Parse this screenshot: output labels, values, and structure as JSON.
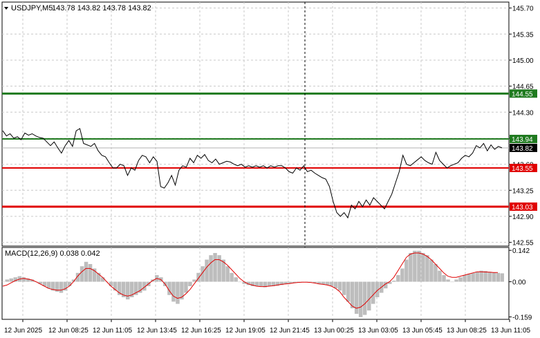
{
  "header": {
    "symbol": "USDJPY,M5",
    "ohlc": "143.78 143.82 143.78 143.82",
    "macd_label": "MACD(12,26,9) 0.038 0.042"
  },
  "colors": {
    "grid": "#c8c8c8",
    "price_line": "#000000",
    "resistance": "#1f7a1f",
    "support": "#e00000",
    "macd_hist": "#bdbdbd",
    "macd_signal": "#e00000",
    "current_box": "#000000"
  },
  "chart_data": [
    {
      "type": "line",
      "title": "USDJPY,M5",
      "y_ticks": [
        142.55,
        142.9,
        143.25,
        143.6,
        143.95,
        144.3,
        144.65,
        145.0,
        145.35,
        145.7
      ],
      "ylim": [
        142.5,
        145.78
      ],
      "x_tick_labels": [
        "12 Jun 2025",
        "12 Jun 08:25",
        "12 Jun 11:05",
        "12 Jun 13:45",
        "12 Jun 16:25",
        "12 Jun 19:05",
        "12 Jun 21:45",
        "13 Jun 00:25",
        "13 Jun 03:05",
        "13 Jun 05:45",
        "13 Jun 08:25",
        "13 Jun 11:05"
      ],
      "levels": [
        {
          "value": 144.55,
          "label": "144.55",
          "kind": "resistance"
        },
        {
          "value": 143.94,
          "label": "143.94",
          "kind": "resistance"
        },
        {
          "value": 143.55,
          "label": "143.55",
          "kind": "support"
        },
        {
          "value": 143.03,
          "label": "143.03",
          "kind": "support"
        }
      ],
      "current_price": {
        "value": 143.82,
        "label": "143.82"
      },
      "series": [
        {
          "values": [
            144.05,
            143.98,
            144.01,
            143.95,
            143.97,
            143.93,
            144.02,
            143.99,
            144.01,
            143.98,
            143.96,
            143.95,
            143.9,
            143.85,
            143.9,
            143.82,
            143.75,
            143.85,
            143.92,
            143.84,
            144.05,
            144.08,
            143.88,
            143.86,
            143.84,
            143.88,
            143.78,
            143.72,
            143.7,
            143.62,
            143.55,
            143.55,
            143.6,
            143.58,
            143.45,
            143.55,
            143.52,
            143.65,
            143.72,
            143.7,
            143.62,
            143.7,
            143.64,
            143.3,
            143.28,
            143.35,
            143.45,
            143.32,
            143.52,
            143.58,
            143.56,
            143.68,
            143.62,
            143.72,
            143.68,
            143.73,
            143.65,
            143.62,
            143.67,
            143.6,
            143.62,
            143.64,
            143.63,
            143.6,
            143.58,
            143.6,
            143.56,
            143.58,
            143.56,
            143.58,
            143.56,
            143.58,
            143.55,
            143.58,
            143.56,
            143.58,
            143.58,
            143.55,
            143.5,
            143.48,
            143.55,
            143.52,
            143.58,
            143.5,
            143.52,
            143.48,
            143.45,
            143.42,
            143.4,
            143.3,
            143.1,
            142.95,
            142.9,
            142.95,
            142.88,
            143.05,
            143.0,
            143.1,
            143.03,
            143.12,
            143.05,
            143.15,
            143.1,
            143.05,
            143.0,
            143.1,
            143.2,
            143.35,
            143.5,
            143.72,
            143.6,
            143.58,
            143.62,
            143.66,
            143.7,
            143.65,
            143.62,
            143.6,
            143.76,
            143.65,
            143.6,
            143.55,
            143.58,
            143.6,
            143.62,
            143.68,
            143.72,
            143.7,
            143.75,
            143.85,
            143.82,
            143.88,
            143.78,
            143.86,
            143.8,
            143.84,
            143.82
          ]
        }
      ]
    },
    {
      "type": "bar",
      "title": "MACD(12,26,9)",
      "y_ticks": [
        0.142,
        0.0,
        -0.159
      ],
      "ylim": [
        -0.17,
        0.155
      ],
      "series": [
        {
          "name": "MACD",
          "values": [
            0.0,
            0.01,
            0.015,
            0.02,
            0.025,
            0.02,
            0.015,
            0.01,
            0.0,
            -0.01,
            -0.02,
            -0.03,
            -0.04,
            -0.045,
            -0.05,
            -0.04,
            -0.02,
            0.01,
            0.04,
            0.07,
            0.09,
            0.08,
            0.06,
            0.04,
            0.02,
            0.0,
            -0.02,
            -0.04,
            -0.06,
            -0.07,
            -0.08,
            -0.07,
            -0.06,
            -0.05,
            -0.04,
            -0.02,
            0.01,
            0.03,
            0.02,
            -0.02,
            -0.06,
            -0.09,
            -0.1,
            -0.08,
            -0.05,
            -0.02,
            0.01,
            0.04,
            0.07,
            0.1,
            0.12,
            0.13,
            0.12,
            0.1,
            0.07,
            0.04,
            0.02,
            0.0,
            -0.01,
            -0.015,
            -0.02,
            -0.02,
            -0.02,
            -0.025,
            -0.02,
            -0.02,
            -0.018,
            -0.015,
            -0.01,
            -0.008,
            -0.005,
            -0.003,
            0.0,
            0.0,
            0.0,
            -0.005,
            -0.01,
            -0.012,
            -0.015,
            -0.02,
            -0.03,
            -0.04,
            -0.06,
            -0.09,
            -0.12,
            -0.145,
            -0.16,
            -0.15,
            -0.13,
            -0.1,
            -0.07,
            -0.05,
            -0.03,
            -0.01,
            0.005,
            0.03,
            0.06,
            0.1,
            0.13,
            0.14,
            0.14,
            0.13,
            0.12,
            0.1,
            0.08,
            0.05,
            0.03,
            0.01,
            0.0,
            0.01,
            0.02,
            0.03,
            0.035,
            0.04,
            0.045,
            0.05,
            0.048,
            0.045,
            0.042,
            0.04,
            0.038
          ]
        },
        {
          "name": "Signal",
          "values": [
            -0.02,
            -0.015,
            -0.005,
            0.005,
            0.012,
            0.015,
            0.012,
            0.008,
            0.0,
            -0.01,
            -0.02,
            -0.03,
            -0.035,
            -0.038,
            -0.038,
            -0.032,
            -0.02,
            0.0,
            0.025,
            0.045,
            0.06,
            0.06,
            0.05,
            0.035,
            0.02,
            0.0,
            -0.02,
            -0.035,
            -0.05,
            -0.06,
            -0.065,
            -0.06,
            -0.05,
            -0.04,
            -0.025,
            -0.01,
            0.005,
            0.015,
            0.01,
            -0.01,
            -0.04,
            -0.065,
            -0.075,
            -0.07,
            -0.055,
            -0.035,
            -0.01,
            0.015,
            0.04,
            0.065,
            0.085,
            0.1,
            0.1,
            0.09,
            0.075,
            0.055,
            0.035,
            0.015,
            0.0,
            -0.01,
            -0.015,
            -0.02,
            -0.022,
            -0.022,
            -0.02,
            -0.018,
            -0.015,
            -0.012,
            -0.01,
            -0.008,
            -0.005,
            -0.003,
            -0.002,
            -0.002,
            -0.003,
            -0.006,
            -0.01,
            -0.012,
            -0.015,
            -0.02,
            -0.03,
            -0.045,
            -0.07,
            -0.09,
            -0.11,
            -0.12,
            -0.115,
            -0.1,
            -0.08,
            -0.06,
            -0.04,
            -0.025,
            -0.01,
            0.0,
            0.02,
            0.05,
            0.08,
            0.11,
            0.125,
            0.13,
            0.13,
            0.125,
            0.115,
            0.1,
            0.08,
            0.06,
            0.04,
            0.025,
            0.02,
            0.02,
            0.025,
            0.03,
            0.035,
            0.04,
            0.045,
            0.045,
            0.044,
            0.043,
            0.042,
            0.042
          ]
        }
      ]
    }
  ]
}
